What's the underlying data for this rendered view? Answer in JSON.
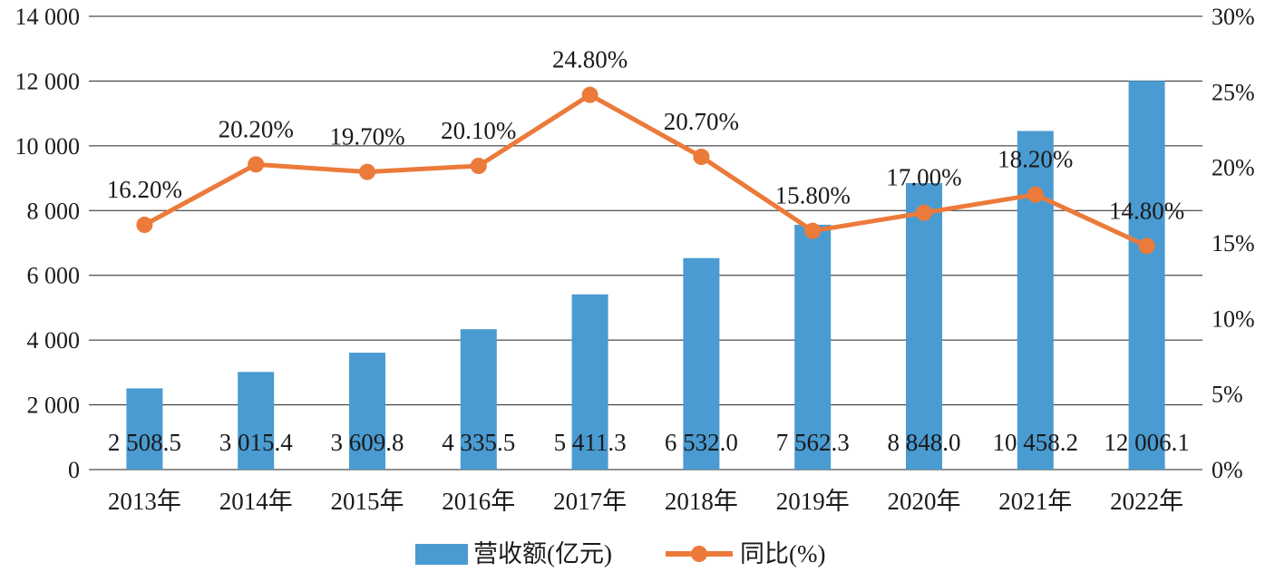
{
  "chart_data": {
    "type": "bar",
    "categories": [
      "2013年",
      "2014年",
      "2015年",
      "2016年",
      "2017年",
      "2018年",
      "2019年",
      "2020年",
      "2021年",
      "2022年"
    ],
    "series": [
      {
        "name": "营收额(亿元)",
        "type": "bar",
        "axis": "left",
        "color": "#4a9bd1",
        "values": [
          2508.5,
          3015.4,
          3609.8,
          4335.5,
          5411.3,
          6532.0,
          7562.3,
          8848.0,
          10458.2,
          12006.1
        ],
        "labels": [
          "2 508.5",
          "3 015.4",
          "3 609.8",
          "4 335.5",
          "5 411.3",
          "6 532.0",
          "7 562.3",
          "8 848.0",
          "10 458.2",
          "12 006.1"
        ]
      },
      {
        "name": "同比(%)",
        "type": "line",
        "axis": "right",
        "color": "#ec7a3a",
        "values": [
          16.2,
          20.2,
          19.7,
          20.1,
          24.8,
          20.7,
          15.8,
          17.0,
          18.2,
          14.8
        ],
        "labels": [
          "16.20%",
          "20.20%",
          "19.70%",
          "20.10%",
          "24.80%",
          "20.70%",
          "15.80%",
          "17.00%",
          "18.20%",
          "14.80%"
        ]
      }
    ],
    "y_left": {
      "ylim": [
        0,
        14000
      ],
      "ticks": [
        0,
        2000,
        4000,
        6000,
        8000,
        10000,
        12000,
        14000
      ],
      "tick_labels": [
        "0",
        "2 000",
        "4 000",
        "6 000",
        "8 000",
        "10 000",
        "12 000",
        "14 000"
      ]
    },
    "y_right": {
      "ylim": [
        0,
        30
      ],
      "tick_labels": [
        "0%",
        "5%",
        "10%",
        "15%",
        "20%",
        "25%",
        "30%"
      ]
    },
    "grid": true,
    "legend_position": "bottom-center"
  }
}
